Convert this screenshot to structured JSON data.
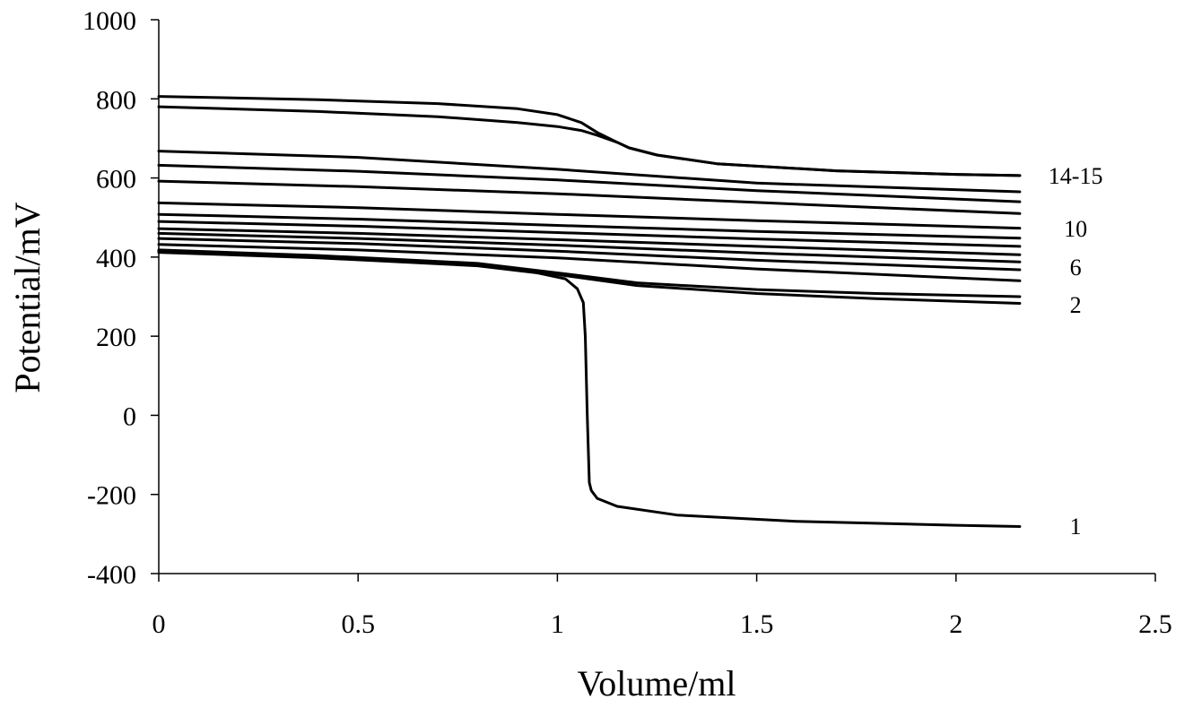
{
  "colors": {
    "line": "#000000",
    "axis": "#000000",
    "background": "#ffffff"
  },
  "chart_data": {
    "type": "line",
    "title": "",
    "xlabel": "Volume/ml",
    "ylabel": "Potential/mV",
    "xlim": [
      0,
      2.5
    ],
    "ylim": [
      -400,
      1000
    ],
    "xticks": [
      0,
      0.5,
      1,
      1.5,
      2,
      2.5
    ],
    "xtick_labels": [
      "0",
      "0.5",
      "1",
      "1.5",
      "2",
      "2.5"
    ],
    "yticks": [
      -400,
      -200,
      0,
      200,
      400,
      600,
      800,
      1000
    ],
    "ytick_labels": [
      "-400",
      "-200",
      "0",
      "200",
      "400",
      "600",
      "800",
      "1000"
    ],
    "grid": false,
    "legend": "none",
    "curve_labels": [
      {
        "text": "14-15",
        "x": 2.3,
        "y": 606
      },
      {
        "text": "10",
        "x": 2.3,
        "y": 472
      },
      {
        "text": "6",
        "x": 2.3,
        "y": 375
      },
      {
        "text": "2",
        "x": 2.3,
        "y": 280
      },
      {
        "text": "1",
        "x": 2.3,
        "y": -280
      }
    ],
    "series": [
      {
        "x": [
          0,
          0.4,
          0.7,
          0.9,
          1.0,
          1.06,
          1.1,
          1.15,
          1.18,
          1.25,
          1.4,
          1.7,
          2.0,
          2.16
        ],
        "y": [
          806,
          798,
          788,
          775,
          760,
          740,
          715,
          690,
          676,
          658,
          636,
          618,
          609,
          606
        ]
      },
      {
        "x": [
          0,
          0.4,
          0.7,
          0.9,
          1.0,
          1.06,
          1.1,
          1.15,
          1.18,
          1.25,
          1.4,
          1.7,
          2.0,
          2.16
        ],
        "y": [
          780,
          768,
          755,
          740,
          730,
          720,
          708,
          690,
          676,
          658,
          636,
          618,
          609,
          606
        ]
      },
      {
        "x": [
          0,
          0.5,
          1.0,
          1.5,
          2.16
        ],
        "y": [
          668,
          652,
          622,
          587,
          565
        ]
      },
      {
        "x": [
          0,
          0.5,
          1.0,
          1.5,
          2.16
        ],
        "y": [
          632,
          617,
          595,
          568,
          540
        ]
      },
      {
        "x": [
          0,
          0.5,
          1.0,
          1.5,
          2.16
        ],
        "y": [
          592,
          578,
          560,
          538,
          510
        ]
      },
      {
        "x": [
          0,
          0.5,
          1.0,
          1.5,
          2.16
        ],
        "y": [
          537,
          525,
          508,
          492,
          473
        ]
      },
      {
        "x": [
          0,
          0.5,
          1.0,
          1.5,
          2.16
        ],
        "y": [
          508,
          496,
          480,
          465,
          448
        ]
      },
      {
        "x": [
          0,
          0.5,
          1.0,
          1.5,
          2.16
        ],
        "y": [
          490,
          478,
          462,
          446,
          427
        ]
      },
      {
        "x": [
          0,
          0.5,
          1.0,
          1.5,
          2.16
        ],
        "y": [
          472,
          460,
          444,
          427,
          406
        ]
      },
      {
        "x": [
          0,
          0.5,
          1.0,
          1.5,
          2.16
        ],
        "y": [
          460,
          447,
          430,
          410,
          388
        ]
      },
      {
        "x": [
          0,
          0.5,
          1.0,
          1.5,
          2.16
        ],
        "y": [
          447,
          434,
          415,
          392,
          368
        ]
      },
      {
        "x": [
          0,
          0.5,
          1.0,
          1.5,
          2.16
        ],
        "y": [
          432,
          418,
          398,
          370,
          340
        ]
      },
      {
        "x": [
          0,
          0.4,
          0.8,
          1.0,
          1.2,
          1.5,
          1.8,
          2.16
        ],
        "y": [
          418,
          404,
          384,
          360,
          335,
          318,
          308,
          300
        ]
      },
      {
        "x": [
          0,
          0.4,
          0.8,
          1.0,
          1.2,
          1.5,
          1.8,
          2.16
        ],
        "y": [
          415,
          402,
          380,
          356,
          328,
          308,
          295,
          283
        ]
      },
      {
        "x": [
          0,
          0.4,
          0.8,
          0.95,
          1.02,
          1.05,
          1.065,
          1.07,
          1.075,
          1.08,
          1.085,
          1.1,
          1.15,
          1.3,
          1.6,
          2.0,
          2.16
        ],
        "y": [
          412,
          398,
          378,
          360,
          345,
          320,
          285,
          200,
          0,
          -170,
          -190,
          -210,
          -230,
          -252,
          -268,
          -278,
          -281
        ]
      }
    ]
  }
}
